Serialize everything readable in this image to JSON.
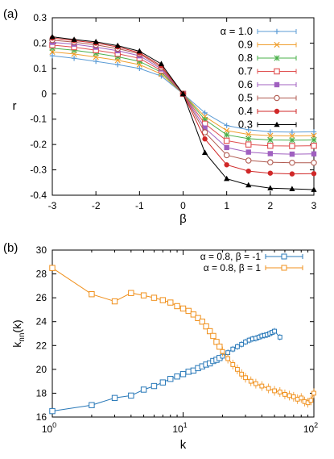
{
  "chart_data": [
    {
      "panel_label": "(a)",
      "type": "line",
      "xlabel": "β",
      "ylabel": "r",
      "xlim": [
        -3,
        3
      ],
      "ylim": [
        -0.4,
        0.3
      ],
      "xticks": [
        "-3",
        "-2",
        "-1",
        "0",
        "1",
        "2",
        "3"
      ],
      "yticks": [
        "-0.4",
        "-0.3",
        "-0.2",
        "-0.1",
        "0",
        "0.1",
        "0.2",
        "0.3"
      ],
      "grid": false,
      "legend_position": "top-right",
      "x": [
        -3,
        -2.5,
        -2,
        -1.5,
        -1,
        -0.5,
        0,
        0.5,
        1,
        1.5,
        2,
        2.5,
        3
      ],
      "series": [
        {
          "name": "α = 1.0",
          "color": "#5b9bd5",
          "marker": "plus",
          "values": [
            0.15,
            0.14,
            0.128,
            0.115,
            0.1,
            0.07,
            0.0,
            -0.075,
            -0.125,
            -0.142,
            -0.15,
            -0.151,
            -0.15
          ]
        },
        {
          "name": "0.9",
          "color": "#f0a030",
          "marker": "cross",
          "values": [
            0.165,
            0.157,
            0.145,
            0.132,
            0.115,
            0.078,
            0.0,
            -0.09,
            -0.145,
            -0.16,
            -0.165,
            -0.166,
            -0.165
          ]
        },
        {
          "name": "0.8",
          "color": "#4ab04a",
          "marker": "star",
          "values": [
            0.18,
            0.172,
            0.16,
            0.146,
            0.128,
            0.085,
            0.0,
            -0.102,
            -0.162,
            -0.177,
            -0.182,
            -0.183,
            -0.182
          ]
        },
        {
          "name": "0.7",
          "color": "#e05050",
          "marker": "open-square",
          "values": [
            0.192,
            0.184,
            0.172,
            0.158,
            0.14,
            0.092,
            0.0,
            -0.118,
            -0.185,
            -0.2,
            -0.205,
            -0.206,
            -0.205
          ]
        },
        {
          "name": "0.6",
          "color": "#a060c0",
          "marker": "filled-square",
          "values": [
            0.203,
            0.196,
            0.184,
            0.17,
            0.15,
            0.098,
            0.0,
            -0.135,
            -0.212,
            -0.23,
            -0.236,
            -0.238,
            -0.237
          ]
        },
        {
          "name": "0.5",
          "color": "#b05a50",
          "marker": "open-circle",
          "values": [
            0.212,
            0.204,
            0.193,
            0.178,
            0.158,
            0.104,
            0.0,
            -0.152,
            -0.242,
            -0.263,
            -0.27,
            -0.272,
            -0.272
          ]
        },
        {
          "name": "0.4",
          "color": "#d02828",
          "marker": "filled-circle",
          "values": [
            0.22,
            0.21,
            0.2,
            0.185,
            0.162,
            0.11,
            0.0,
            -0.178,
            -0.28,
            -0.305,
            -0.313,
            -0.316,
            -0.315
          ]
        },
        {
          "name": "0.3",
          "color": "#000000",
          "marker": "triangle",
          "values": [
            0.225,
            0.214,
            0.205,
            0.19,
            0.168,
            0.118,
            0.0,
            -0.232,
            -0.335,
            -0.36,
            -0.372,
            -0.375,
            -0.378
          ]
        }
      ]
    },
    {
      "panel_label": "(b)",
      "type": "line",
      "xlabel": "k",
      "ylabel": "k_nn(k)",
      "ylabel_main": "k",
      "ylabel_sub": "nn",
      "ylabel_rest": "(k)",
      "x_scale": "log",
      "xlim": [
        1,
        100
      ],
      "ylim": [
        16,
        30
      ],
      "xticks": [
        {
          "value": 1,
          "base": "10",
          "exp": "0"
        },
        {
          "value": 10,
          "base": "10",
          "exp": "1"
        },
        {
          "value": 100,
          "base": "10",
          "exp": "2"
        }
      ],
      "yticks": [
        "16",
        "18",
        "20",
        "22",
        "24",
        "26",
        "28",
        "30"
      ],
      "grid": false,
      "legend_position": "top-right",
      "series": [
        {
          "name": "α = 0.8, β = -1",
          "color": "#2878b8",
          "marker": "open-square",
          "x": [
            1,
            2,
            3,
            4,
            5,
            6,
            7,
            8,
            9,
            10,
            11,
            12,
            13,
            14,
            15,
            16,
            17,
            18,
            19,
            20,
            22,
            24,
            26,
            28,
            30,
            32,
            34,
            36,
            38,
            40,
            42,
            44,
            46,
            48,
            50,
            55
          ],
          "values": [
            16.5,
            17.0,
            17.6,
            17.8,
            18.3,
            18.6,
            18.9,
            19.2,
            19.4,
            19.6,
            19.8,
            19.9,
            20.1,
            20.25,
            20.4,
            20.5,
            20.7,
            20.8,
            20.95,
            21.1,
            21.4,
            21.7,
            21.9,
            22.1,
            22.3,
            22.45,
            22.55,
            22.6,
            22.7,
            22.8,
            22.85,
            22.9,
            23.0,
            23.1,
            23.2,
            22.7
          ]
        },
        {
          "name": "α = 0.8, β = 1",
          "color": "#f0901c",
          "marker": "open-square",
          "x": [
            1,
            2,
            3,
            4,
            5,
            6,
            7,
            8,
            9,
            10,
            11,
            12,
            13,
            14,
            15,
            16,
            17,
            18,
            19,
            20,
            22,
            24,
            26,
            28,
            30,
            33,
            36,
            40,
            45,
            50,
            55,
            60,
            65,
            70,
            75,
            80,
            85,
            90,
            95,
            100
          ],
          "values": [
            28.5,
            26.3,
            25.7,
            26.4,
            26.2,
            26.0,
            25.8,
            25.6,
            25.3,
            25.1,
            24.9,
            24.6,
            24.3,
            24.0,
            23.6,
            23.2,
            22.8,
            22.3,
            21.9,
            21.5,
            20.9,
            20.4,
            20.0,
            19.6,
            19.3,
            19.0,
            18.8,
            18.6,
            18.4,
            18.2,
            18.1,
            17.9,
            17.8,
            17.7,
            17.5,
            17.6,
            17.3,
            17.2,
            17.4,
            18.0
          ]
        }
      ]
    }
  ]
}
